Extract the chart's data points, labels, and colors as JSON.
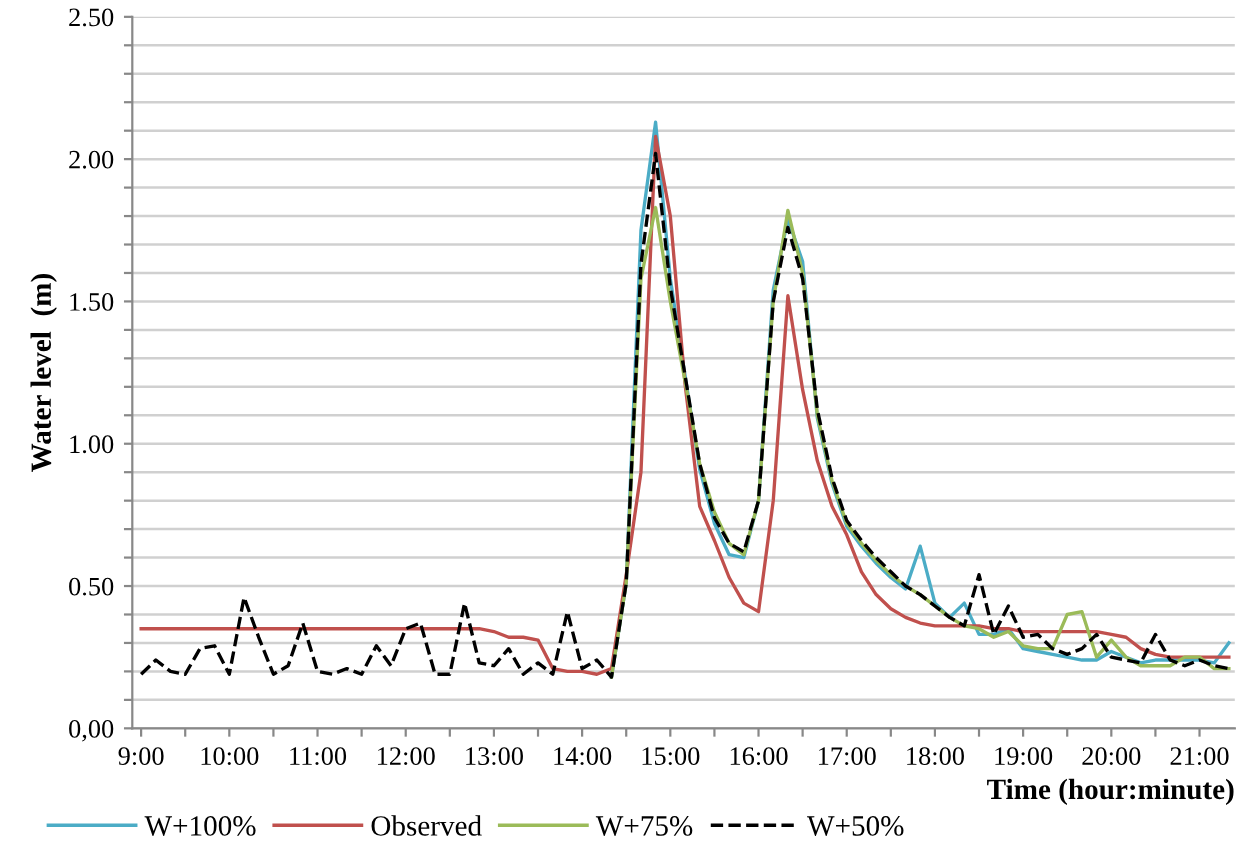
{
  "chart_data": {
    "type": "line",
    "xlabel": "Time (hour:minute)",
    "ylabel": "Water level  (m)",
    "x": [
      9,
      9.167,
      9.333,
      9.5,
      9.667,
      9.833,
      10,
      10.167,
      10.333,
      10.5,
      10.667,
      10.833,
      11,
      11.167,
      11.333,
      11.5,
      11.667,
      11.833,
      12,
      12.167,
      12.333,
      12.5,
      12.667,
      12.833,
      13,
      13.167,
      13.333,
      13.5,
      13.667,
      13.833,
      14,
      14.167,
      14.333,
      14.5,
      14.667,
      14.833,
      15,
      15.167,
      15.333,
      15.5,
      15.667,
      15.833,
      16,
      16.167,
      16.333,
      16.5,
      16.667,
      16.833,
      17,
      17.167,
      17.333,
      17.5,
      17.667,
      17.833,
      18,
      18.167,
      18.333,
      18.5,
      18.667,
      18.833,
      19,
      19.167,
      19.333,
      19.5,
      19.667,
      19.833,
      20,
      20.167,
      20.333,
      20.5,
      20.667,
      20.833,
      21,
      21.167,
      21.333
    ],
    "series": [
      {
        "name": "W+100%",
        "color": "#4bacc6",
        "line_style": "solid",
        "values": [
          null,
          null,
          null,
          null,
          null,
          null,
          null,
          null,
          null,
          null,
          null,
          null,
          null,
          null,
          null,
          null,
          null,
          null,
          null,
          null,
          null,
          null,
          null,
          null,
          null,
          null,
          null,
          null,
          null,
          null,
          null,
          null,
          0.18,
          0.51,
          1.75,
          2.13,
          1.58,
          1.24,
          0.91,
          0.72,
          0.61,
          0.6,
          0.8,
          1.54,
          1.79,
          1.64,
          1.09,
          0.86,
          0.71,
          0.64,
          0.58,
          0.53,
          0.49,
          0.64,
          0.44,
          0.39,
          0.44,
          0.33,
          0.33,
          0.35,
          0.28,
          0.27,
          0.26,
          0.25,
          0.24,
          0.24,
          0.27,
          0.25,
          0.23,
          0.24,
          0.24,
          0.24,
          0.24,
          0.23,
          0.3
        ]
      },
      {
        "name": "Observed",
        "color": "#c0504d",
        "line_style": "solid",
        "values": [
          0.35,
          0.35,
          0.35,
          0.35,
          0.35,
          0.35,
          0.35,
          0.35,
          0.35,
          0.35,
          0.35,
          0.35,
          0.35,
          0.35,
          0.35,
          0.35,
          0.35,
          0.35,
          0.35,
          0.35,
          0.35,
          0.35,
          0.35,
          0.35,
          0.34,
          0.32,
          0.32,
          0.31,
          0.21,
          0.2,
          0.2,
          0.19,
          0.21,
          0.54,
          0.9,
          2.08,
          1.8,
          1.21,
          0.78,
          0.66,
          0.53,
          0.44,
          0.41,
          0.8,
          1.52,
          1.19,
          0.94,
          0.78,
          0.68,
          0.55,
          0.47,
          0.42,
          0.39,
          0.37,
          0.36,
          0.36,
          0.36,
          0.36,
          0.35,
          0.35,
          0.34,
          0.34,
          0.34,
          0.34,
          0.34,
          0.34,
          0.33,
          0.32,
          0.28,
          0.26,
          0.25,
          0.25,
          0.25,
          0.25,
          0.25
        ]
      },
      {
        "name": "W+75%",
        "color": "#9bbb59",
        "line_style": "solid",
        "values": [
          null,
          null,
          null,
          null,
          null,
          null,
          null,
          null,
          null,
          null,
          null,
          null,
          null,
          null,
          null,
          null,
          null,
          null,
          null,
          null,
          null,
          null,
          null,
          null,
          null,
          null,
          null,
          null,
          null,
          null,
          null,
          null,
          0.18,
          0.51,
          1.58,
          1.83,
          1.5,
          1.22,
          0.93,
          0.76,
          0.65,
          0.61,
          0.8,
          1.5,
          1.82,
          1.6,
          1.1,
          0.87,
          0.72,
          0.65,
          0.59,
          0.54,
          0.5,
          0.47,
          0.43,
          0.39,
          0.36,
          0.35,
          0.32,
          0.34,
          0.29,
          0.28,
          0.28,
          0.4,
          0.41,
          0.25,
          0.31,
          0.25,
          0.22,
          0.22,
          0.22,
          0.25,
          0.25,
          0.21,
          0.21
        ]
      },
      {
        "name": "W+50%",
        "color": "#000000",
        "line_style": "dashed",
        "values": [
          0.19,
          0.24,
          0.2,
          0.19,
          0.28,
          0.29,
          0.19,
          0.46,
          0.32,
          0.19,
          0.22,
          0.37,
          0.2,
          0.19,
          0.21,
          0.19,
          0.29,
          0.22,
          0.35,
          0.37,
          0.19,
          0.19,
          0.44,
          0.23,
          0.22,
          0.28,
          0.19,
          0.23,
          0.19,
          0.41,
          0.21,
          0.24,
          0.18,
          0.51,
          1.63,
          2.02,
          1.55,
          1.24,
          0.93,
          0.74,
          0.65,
          0.62,
          0.8,
          1.5,
          1.76,
          1.58,
          1.12,
          0.88,
          0.73,
          0.66,
          0.6,
          0.55,
          0.5,
          0.47,
          0.43,
          0.39,
          0.36,
          0.54,
          0.33,
          0.43,
          0.32,
          0.33,
          0.28,
          0.26,
          0.28,
          0.33,
          0.25,
          0.24,
          0.23,
          0.33,
          0.24,
          0.22,
          0.24,
          0.22,
          0.21
        ]
      }
    ],
    "xlim": [
      8.9,
      21.4
    ],
    "xticks": [
      {
        "value": 9,
        "label": "9:00"
      },
      {
        "value": 9.5,
        "label": null
      },
      {
        "value": 10,
        "label": "10:00"
      },
      {
        "value": 10.5,
        "label": null
      },
      {
        "value": 11,
        "label": "11:00"
      },
      {
        "value": 11.5,
        "label": null
      },
      {
        "value": 12,
        "label": "12:00"
      },
      {
        "value": 12.5,
        "label": null
      },
      {
        "value": 13,
        "label": "13:00"
      },
      {
        "value": 13.5,
        "label": null
      },
      {
        "value": 14,
        "label": "14:00"
      },
      {
        "value": 14.5,
        "label": null
      },
      {
        "value": 15,
        "label": "15:00"
      },
      {
        "value": 15.5,
        "label": null
      },
      {
        "value": 16,
        "label": "16:00"
      },
      {
        "value": 16.5,
        "label": null
      },
      {
        "value": 17,
        "label": "17:00"
      },
      {
        "value": 17.5,
        "label": null
      },
      {
        "value": 18,
        "label": "18:00"
      },
      {
        "value": 18.5,
        "label": null
      },
      {
        "value": 19,
        "label": "19:00"
      },
      {
        "value": 19.5,
        "label": null
      },
      {
        "value": 20,
        "label": "20:00"
      },
      {
        "value": 20.5,
        "label": null
      },
      {
        "value": 21,
        "label": "21:00"
      }
    ],
    "ylim": [
      0,
      2.5
    ],
    "yticks": [
      {
        "value": 0,
        "label": "0,00"
      },
      {
        "value": 0.1,
        "label": null
      },
      {
        "value": 0.2,
        "label": null
      },
      {
        "value": 0.3,
        "label": null
      },
      {
        "value": 0.4,
        "label": null
      },
      {
        "value": 0.5,
        "label": "0.50"
      },
      {
        "value": 0.6,
        "label": null
      },
      {
        "value": 0.7,
        "label": null
      },
      {
        "value": 0.8,
        "label": null
      },
      {
        "value": 0.9,
        "label": null
      },
      {
        "value": 1.0,
        "label": "1.00"
      },
      {
        "value": 1.1,
        "label": null
      },
      {
        "value": 1.2,
        "label": null
      },
      {
        "value": 1.3,
        "label": null
      },
      {
        "value": 1.4,
        "label": null
      },
      {
        "value": 1.5,
        "label": "1.50"
      },
      {
        "value": 1.6,
        "label": null
      },
      {
        "value": 1.7,
        "label": null
      },
      {
        "value": 1.8,
        "label": null
      },
      {
        "value": 1.9,
        "label": null
      },
      {
        "value": 2.0,
        "label": "2.00"
      },
      {
        "value": 2.1,
        "label": null
      },
      {
        "value": 2.2,
        "label": null
      },
      {
        "value": 2.3,
        "label": null
      },
      {
        "value": 2.4,
        "label": null
      },
      {
        "value": 2.5,
        "label": "2.50"
      }
    ],
    "grid": "y",
    "legend": "bottom left",
    "marker": "none"
  }
}
